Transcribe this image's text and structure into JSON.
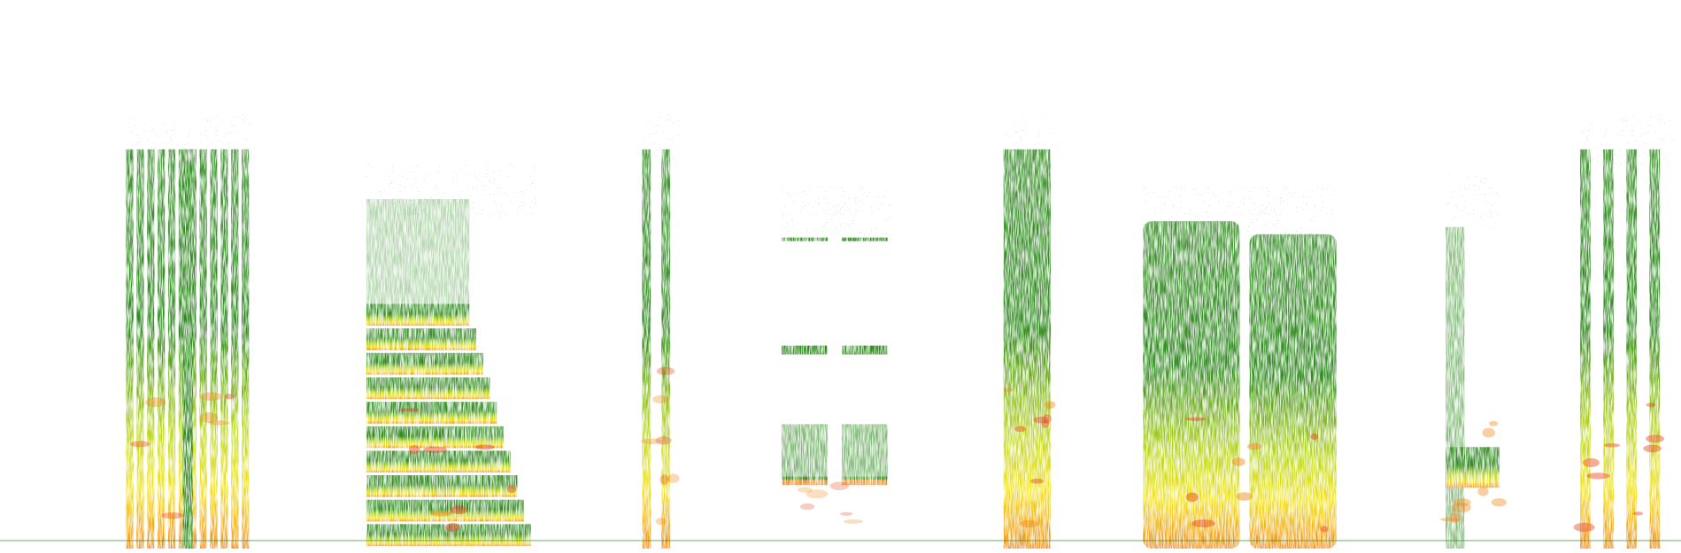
{
  "image": {
    "description_visible": "",
    "background": "#ffffff",
    "palette": {
      "low": "#2f8a1f",
      "mid": "#b9d621",
      "high": "#f2e21a",
      "peak": "#f08a1a",
      "max": "#e8451c"
    },
    "segments": [
      {
        "id": "s1",
        "kind": "harmonic-stack",
        "t_start": 0.075,
        "t_end": 0.15,
        "f_top": 0.73,
        "intensity": 0.7
      },
      {
        "id": "s2",
        "kind": "broadband-decay",
        "t_start": 0.218,
        "t_end": 0.32,
        "f_top": 0.64,
        "intensity": 0.85
      },
      {
        "id": "s3",
        "kind": "narrow-bursts",
        "t_start": 0.382,
        "t_end": 0.405,
        "f_top": 0.73,
        "intensity": 0.6
      },
      {
        "id": "s4",
        "kind": "tonal-pair",
        "t_start": 0.465,
        "t_end": 0.53,
        "f_top": 0.6,
        "intensity": 0.5
      },
      {
        "id": "s5",
        "kind": "dense-column",
        "t_start": 0.597,
        "t_end": 0.625,
        "f_top": 0.73,
        "intensity": 0.8
      },
      {
        "id": "s6",
        "kind": "broadband-block",
        "t_start": 0.68,
        "t_end": 0.795,
        "f_top": 0.6,
        "intensity": 0.85
      },
      {
        "id": "s7",
        "kind": "low-tone-fade",
        "t_start": 0.86,
        "t_end": 0.892,
        "f_top": 0.62,
        "intensity": 0.75
      },
      {
        "id": "s8",
        "kind": "pulse-columns",
        "t_start": 0.94,
        "t_end": 0.995,
        "f_top": 0.73,
        "intensity": 0.8
      }
    ]
  }
}
